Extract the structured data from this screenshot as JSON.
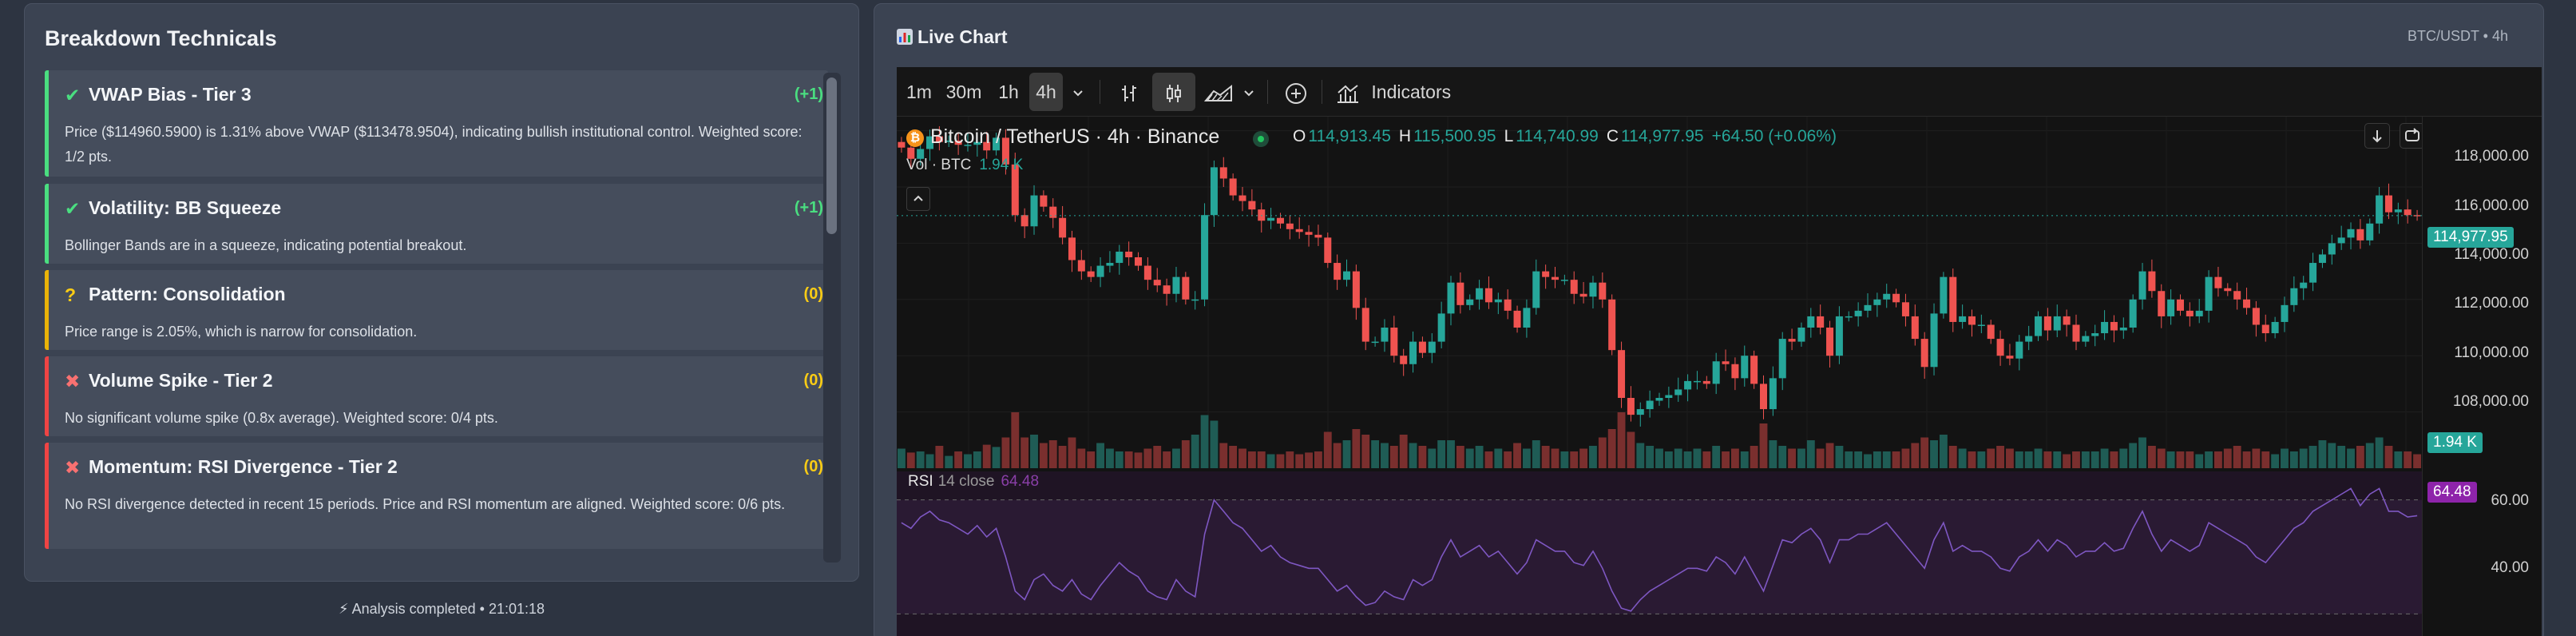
{
  "breakdown": {
    "title": "Breakdown Technicals",
    "items": [
      {
        "status": "✔",
        "name": "VWAP Bias - Tier 3",
        "score": "(+1)",
        "kind": "pass",
        "desc": "Price ($114960.5900) is 1.31% above VWAP ($113478.9504), indicating bullish institutional control. Weighted score: 1/2 pts."
      },
      {
        "status": "✔",
        "name": "Volatility: BB Squeeze",
        "score": "(+1)",
        "kind": "pass",
        "desc": "Bollinger Bands are in a squeeze, indicating potential breakout."
      },
      {
        "status": "?",
        "name": "Pattern: Consolidation",
        "score": "(0)",
        "kind": "warn",
        "desc": "Price range is 2.05%, which is narrow for consolidation."
      },
      {
        "status": "✖",
        "name": "Volume Spike - Tier 2",
        "score": "(0)",
        "kind": "fail",
        "desc": "No significant volume spike (0.8x average). Weighted score: 0/4 pts."
      },
      {
        "status": "✖",
        "name": "Momentum: RSI Divergence - Tier 2",
        "score": "(0)",
        "kind": "fail",
        "desc": "No RSI divergence detected in recent 15 periods. Price and RSI momentum are aligned. Weighted score: 0/6 pts."
      }
    ]
  },
  "analysis_status": "⚡ Analysis completed • 21:01:18",
  "live_chart": {
    "title": "Live Chart",
    "pair_label": "BTC/USDT • 4h",
    "toolbar": {
      "timeframes": [
        "1m",
        "30m",
        "1h",
        "4h"
      ],
      "active_timeframe": "4h",
      "indicators_label": "Indicators"
    },
    "symbol": {
      "title": "Bitcoin / TetherUS · 4h · Binance",
      "open_key": "O",
      "open": "114,913.45",
      "high_key": "H",
      "high": "115,500.95",
      "low_key": "L",
      "low": "114,740.99",
      "close_key": "C",
      "close": "114,977.95",
      "change": "+64.50 (+0.06%)"
    },
    "volume": {
      "label": "Vol · BTC",
      "value": "1.94 K"
    },
    "price_axis": [
      "118,000.00",
      "116,000.00",
      "114,000.00",
      "112,000.00",
      "110,000.00",
      "108,000.00"
    ],
    "price_tag": "114,977.95",
    "volume_tag": "1.94 K",
    "rsi": {
      "label": "RSI",
      "params": "14 close",
      "value": "64.48",
      "axis": [
        "60.00",
        "40.00"
      ],
      "tag": "64.48"
    },
    "colors": {
      "up": "#26a69a",
      "down": "#ef5350",
      "rsi": "#7e57c2",
      "rsi_band": "#2a1a33"
    },
    "chart_data": {
      "type": "candlestick",
      "ylim": [
        106000,
        118500
      ],
      "closes": [
        117400,
        117000,
        117350,
        117800,
        117600,
        117650,
        117500,
        117500,
        117600,
        117300,
        117750,
        116800,
        115000,
        114600,
        115700,
        115300,
        114900,
        114200,
        113400,
        113000,
        112800,
        113200,
        113300,
        113700,
        113500,
        113200,
        112700,
        112500,
        112200,
        112800,
        112000,
        112000,
        115000,
        116700,
        116300,
        115700,
        115500,
        115200,
        114800,
        114900,
        114700,
        114500,
        114400,
        114300,
        114200,
        113300,
        112700,
        113000,
        111700,
        110500,
        110500,
        111000,
        110000,
        109700,
        110500,
        110100,
        110500,
        111500,
        112600,
        111800,
        112000,
        112400,
        111900,
        112000,
        111600,
        111000,
        111700,
        113000,
        112800,
        112700,
        112700,
        112200,
        112100,
        112600,
        112000,
        110200,
        108500,
        107900,
        108100,
        108400,
        108500,
        108600,
        108800,
        109100,
        109100,
        109000,
        109800,
        109700,
        109200,
        110000,
        109000,
        108100,
        109200,
        110600,
        110500,
        111000,
        111400,
        111000,
        110000,
        111400,
        111400,
        111600,
        111800,
        112000,
        112200,
        111900,
        111400,
        110600,
        109600,
        111500,
        112800,
        111200,
        111400,
        111100,
        111100,
        110600,
        110000,
        109900,
        110500,
        110700,
        111400,
        110900,
        111400,
        111100,
        110500,
        110700,
        110800,
        111200,
        110900,
        111000,
        112000,
        113000,
        112300,
        111400,
        112000,
        111600,
        111400,
        111600,
        112800,
        112400,
        112300,
        112000,
        111700,
        111100,
        110800,
        111200,
        111800,
        112400,
        112600,
        113300,
        113600,
        114000,
        114200,
        114500,
        114100,
        114700,
        115700,
        115100,
        115200,
        115000,
        114980
      ],
      "volumes": [
        0.35,
        0.28,
        0.3,
        0.25,
        0.4,
        0.22,
        0.3,
        0.25,
        0.3,
        0.42,
        0.38,
        0.55,
        1.0,
        0.55,
        0.6,
        0.45,
        0.5,
        0.4,
        0.55,
        0.35,
        0.3,
        0.45,
        0.35,
        0.3,
        0.3,
        0.28,
        0.35,
        0.4,
        0.3,
        0.35,
        0.5,
        0.6,
        0.95,
        0.85,
        0.45,
        0.4,
        0.35,
        0.3,
        0.3,
        0.25,
        0.25,
        0.3,
        0.25,
        0.28,
        0.3,
        0.65,
        0.45,
        0.5,
        0.7,
        0.6,
        0.5,
        0.45,
        0.4,
        0.6,
        0.45,
        0.4,
        0.35,
        0.5,
        0.5,
        0.4,
        0.35,
        0.4,
        0.3,
        0.35,
        0.3,
        0.45,
        0.35,
        0.5,
        0.4,
        0.35,
        0.3,
        0.3,
        0.35,
        0.4,
        0.55,
        0.7,
        1.0,
        0.65,
        0.45,
        0.4,
        0.35,
        0.3,
        0.35,
        0.3,
        0.35,
        0.3,
        0.4,
        0.3,
        0.35,
        0.3,
        0.4,
        0.8,
        0.5,
        0.4,
        0.35,
        0.35,
        0.5,
        0.35,
        0.45,
        0.4,
        0.3,
        0.3,
        0.25,
        0.3,
        0.3,
        0.3,
        0.35,
        0.45,
        0.55,
        0.5,
        0.6,
        0.4,
        0.35,
        0.3,
        0.3,
        0.35,
        0.4,
        0.35,
        0.3,
        0.3,
        0.35,
        0.3,
        0.3,
        0.25,
        0.3,
        0.3,
        0.3,
        0.35,
        0.3,
        0.35,
        0.45,
        0.55,
        0.4,
        0.35,
        0.3,
        0.3,
        0.3,
        0.25,
        0.3,
        0.3,
        0.35,
        0.4,
        0.3,
        0.35,
        0.3,
        0.25,
        0.35,
        0.3,
        0.35,
        0.4,
        0.5,
        0.45,
        0.4,
        0.35,
        0.4,
        0.45,
        0.55,
        0.4,
        0.3,
        0.3,
        0.25
      ],
      "rsi": [
        62,
        60,
        64,
        66,
        63,
        62,
        60,
        58,
        61,
        57,
        60,
        50,
        38,
        35,
        42,
        44,
        40,
        38,
        42,
        37,
        35,
        40,
        44,
        48,
        45,
        43,
        38,
        36,
        35,
        42,
        38,
        36,
        58,
        70,
        66,
        62,
        60,
        56,
        52,
        54,
        50,
        48,
        47,
        46,
        46,
        42,
        38,
        40,
        36,
        33,
        34,
        38,
        36,
        35,
        42,
        40,
        42,
        50,
        56,
        50,
        52,
        54,
        50,
        52,
        48,
        44,
        48,
        56,
        54,
        52,
        52,
        48,
        47,
        52,
        46,
        38,
        32,
        31,
        35,
        38,
        40,
        42,
        44,
        46,
        46,
        45,
        50,
        48,
        44,
        50,
        44,
        38,
        47,
        56,
        55,
        58,
        60,
        56,
        48,
        56,
        56,
        58,
        58,
        60,
        62,
        58,
        54,
        50,
        46,
        56,
        62,
        52,
        54,
        52,
        52,
        50,
        46,
        45,
        50,
        52,
        56,
        52,
        56,
        54,
        50,
        52,
        52,
        55,
        52,
        53,
        60,
        66,
        58,
        52,
        56,
        54,
        52,
        54,
        62,
        60,
        58,
        56,
        54,
        50,
        48,
        52,
        56,
        60,
        62,
        66,
        68,
        70,
        72,
        74,
        68,
        72,
        74,
        66,
        66,
        64,
        64.48
      ]
    }
  }
}
